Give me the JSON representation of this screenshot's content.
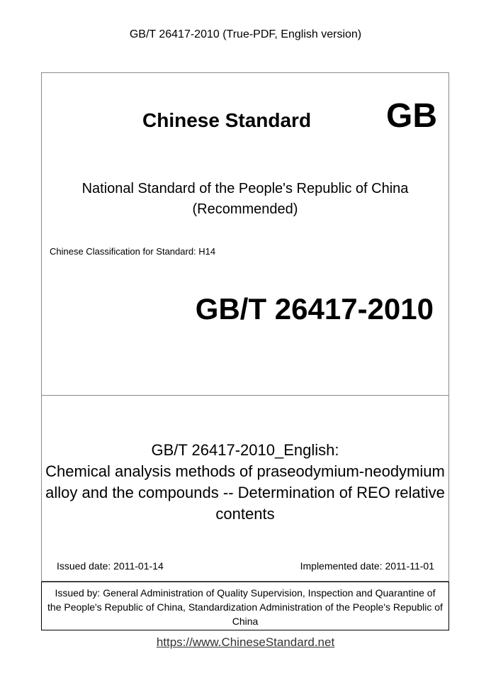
{
  "header": {
    "title": "GB/T 26417-2010 (True-PDF, English version)"
  },
  "cover": {
    "brand": "Chinese Standard",
    "brand_mark": "GB",
    "national_line1": "National Standard of the People's Republic of China",
    "national_line2": "(Recommended)",
    "classification": "Chinese Classification for Standard: H14",
    "standard_code": "GB/T 26417-2010"
  },
  "details": {
    "title_line1": "GB/T 26417-2010_English:",
    "title_line2": "Chemical analysis methods of praseodymium-neodymium",
    "title_line3": "alloy and the compounds -- Determination of REO relative",
    "title_line4": "contents",
    "issued_date": "Issued date: 2011-01-14",
    "implemented_date": "Implemented date: 2011-11-01"
  },
  "issuer": {
    "line1": "Issued by: General Administration of Quality Supervision, Inspection and Quarantine of",
    "line2": "the People's Republic of China, Standardization Administration of the People's Republic of",
    "line3": "China"
  },
  "footer": {
    "link": "https://www.ChineseStandard.net"
  }
}
